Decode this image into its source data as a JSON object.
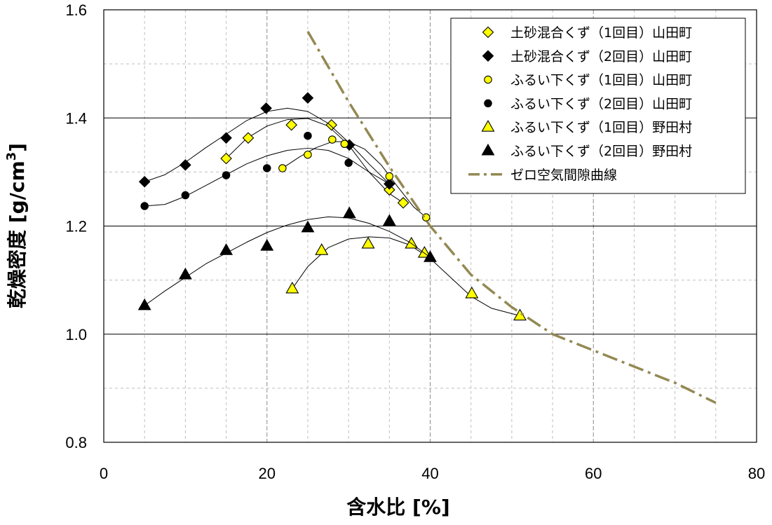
{
  "chart_data": {
    "type": "scatter",
    "xlabel": "含水比 [%]",
    "ylabel_main": "乾燥密度 [g/cm",
    "ylabel_sup": "3",
    "ylabel_end": "]",
    "xlim": [
      0,
      80
    ],
    "ylim": [
      0.8,
      1.6
    ],
    "x_ticks": [
      "0",
      "20",
      "40",
      "60",
      "80"
    ],
    "y_ticks": [
      "0.8",
      "1.0",
      "1.2",
      "1.4",
      "1.6"
    ],
    "grid": "major solid, minor dashed",
    "legend_position": "top-right",
    "series": [
      {
        "name": "土砂混合くず（1回目）山田町",
        "marker": "diamond",
        "fill": "#ffff00",
        "x": [
          15,
          17.7,
          23,
          27.9,
          35,
          36.7
        ],
        "y": [
          1.325,
          1.363,
          1.387,
          1.387,
          1.267,
          1.243
        ],
        "curve_x": [
          15,
          17.5,
          20,
          22.5,
          25,
          27.5,
          30,
          32.5,
          35,
          36.7
        ],
        "curve_y": [
          1.325,
          1.362,
          1.385,
          1.397,
          1.399,
          1.385,
          1.35,
          1.3,
          1.26,
          1.243
        ]
      },
      {
        "name": "土砂混合くず（2回目）山田町",
        "marker": "diamond",
        "fill": "#000000",
        "x": [
          5,
          10,
          15,
          19.9,
          25,
          30.1,
          35
        ],
        "y": [
          1.282,
          1.313,
          1.363,
          1.418,
          1.437,
          1.35,
          1.278
        ],
        "curve_x": [
          5,
          7.5,
          10,
          12.5,
          15,
          17.5,
          20,
          22.5,
          25,
          27.5,
          30,
          32.5,
          35
        ],
        "curve_y": [
          1.282,
          1.295,
          1.318,
          1.345,
          1.37,
          1.395,
          1.412,
          1.418,
          1.412,
          1.39,
          1.355,
          1.315,
          1.278
        ]
      },
      {
        "name": "ふるい下くず（1回目）山田町",
        "marker": "circle",
        "fill": "#ffff00",
        "x": [
          21.9,
          25,
          28,
          29.5,
          35,
          39.5
        ],
        "y": [
          1.307,
          1.332,
          1.36,
          1.352,
          1.292,
          1.216
        ],
        "curve_x": [
          21.9,
          24,
          26,
          28,
          30,
          32,
          34,
          36,
          38,
          39.5
        ],
        "curve_y": [
          1.307,
          1.328,
          1.345,
          1.356,
          1.356,
          1.342,
          1.313,
          1.273,
          1.235,
          1.216
        ]
      },
      {
        "name": "ふるい下くず（2回目）山田町",
        "marker": "circle",
        "fill": "#000000",
        "x": [
          5,
          10,
          15,
          20,
          25,
          30,
          35
        ],
        "y": [
          1.237,
          1.257,
          1.294,
          1.307,
          1.367,
          1.317,
          1.278
        ],
        "curve_x": [
          5,
          7.5,
          10,
          12.5,
          15,
          17.5,
          20,
          22.5,
          25,
          27.5,
          30,
          32.5,
          35
        ],
        "curve_y": [
          1.237,
          1.24,
          1.255,
          1.275,
          1.295,
          1.315,
          1.33,
          1.34,
          1.344,
          1.34,
          1.325,
          1.3,
          1.278
        ]
      },
      {
        "name": "ふるい下くず（1回目）野田村",
        "marker": "triangle",
        "fill": "#ffff00",
        "x": [
          23.1,
          26.7,
          32.4,
          37.7,
          39.3,
          45.1,
          51
        ],
        "y": [
          1.084,
          1.155,
          1.167,
          1.167,
          1.15,
          1.075,
          1.034
        ],
        "curve_x": [
          23.1,
          25,
          27.5,
          30,
          32.5,
          35,
          37.5,
          40,
          42.5,
          45,
          47.5,
          51
        ],
        "curve_y": [
          1.084,
          1.125,
          1.16,
          1.176,
          1.18,
          1.178,
          1.165,
          1.14,
          1.105,
          1.07,
          1.048,
          1.034
        ]
      },
      {
        "name": "ふるい下くず（2回目）野田村",
        "marker": "triangle",
        "fill": "#000000",
        "x": [
          5,
          10,
          15,
          20,
          25,
          30.1,
          35,
          40
        ],
        "y": [
          1.053,
          1.11,
          1.155,
          1.163,
          1.197,
          1.223,
          1.209,
          1.142
        ],
        "curve_x": [
          5,
          7.5,
          10,
          12.5,
          15,
          17.5,
          20,
          22.5,
          25,
          27.5,
          30,
          32.5,
          35,
          37.5,
          40
        ],
        "curve_y": [
          1.053,
          1.08,
          1.105,
          1.13,
          1.15,
          1.17,
          1.188,
          1.202,
          1.212,
          1.217,
          1.215,
          1.205,
          1.19,
          1.17,
          1.142
        ]
      },
      {
        "name": "ゼロ空気間隙曲線",
        "marker": "none",
        "color": "#938953",
        "style": "dash-dot",
        "x": [
          25,
          30,
          35,
          40,
          45,
          50,
          55,
          60,
          65,
          70,
          75
        ],
        "y": [
          1.56,
          1.43,
          1.31,
          1.2,
          1.11,
          1.05,
          1.0,
          0.97,
          0.94,
          0.91,
          0.873
        ]
      }
    ]
  }
}
